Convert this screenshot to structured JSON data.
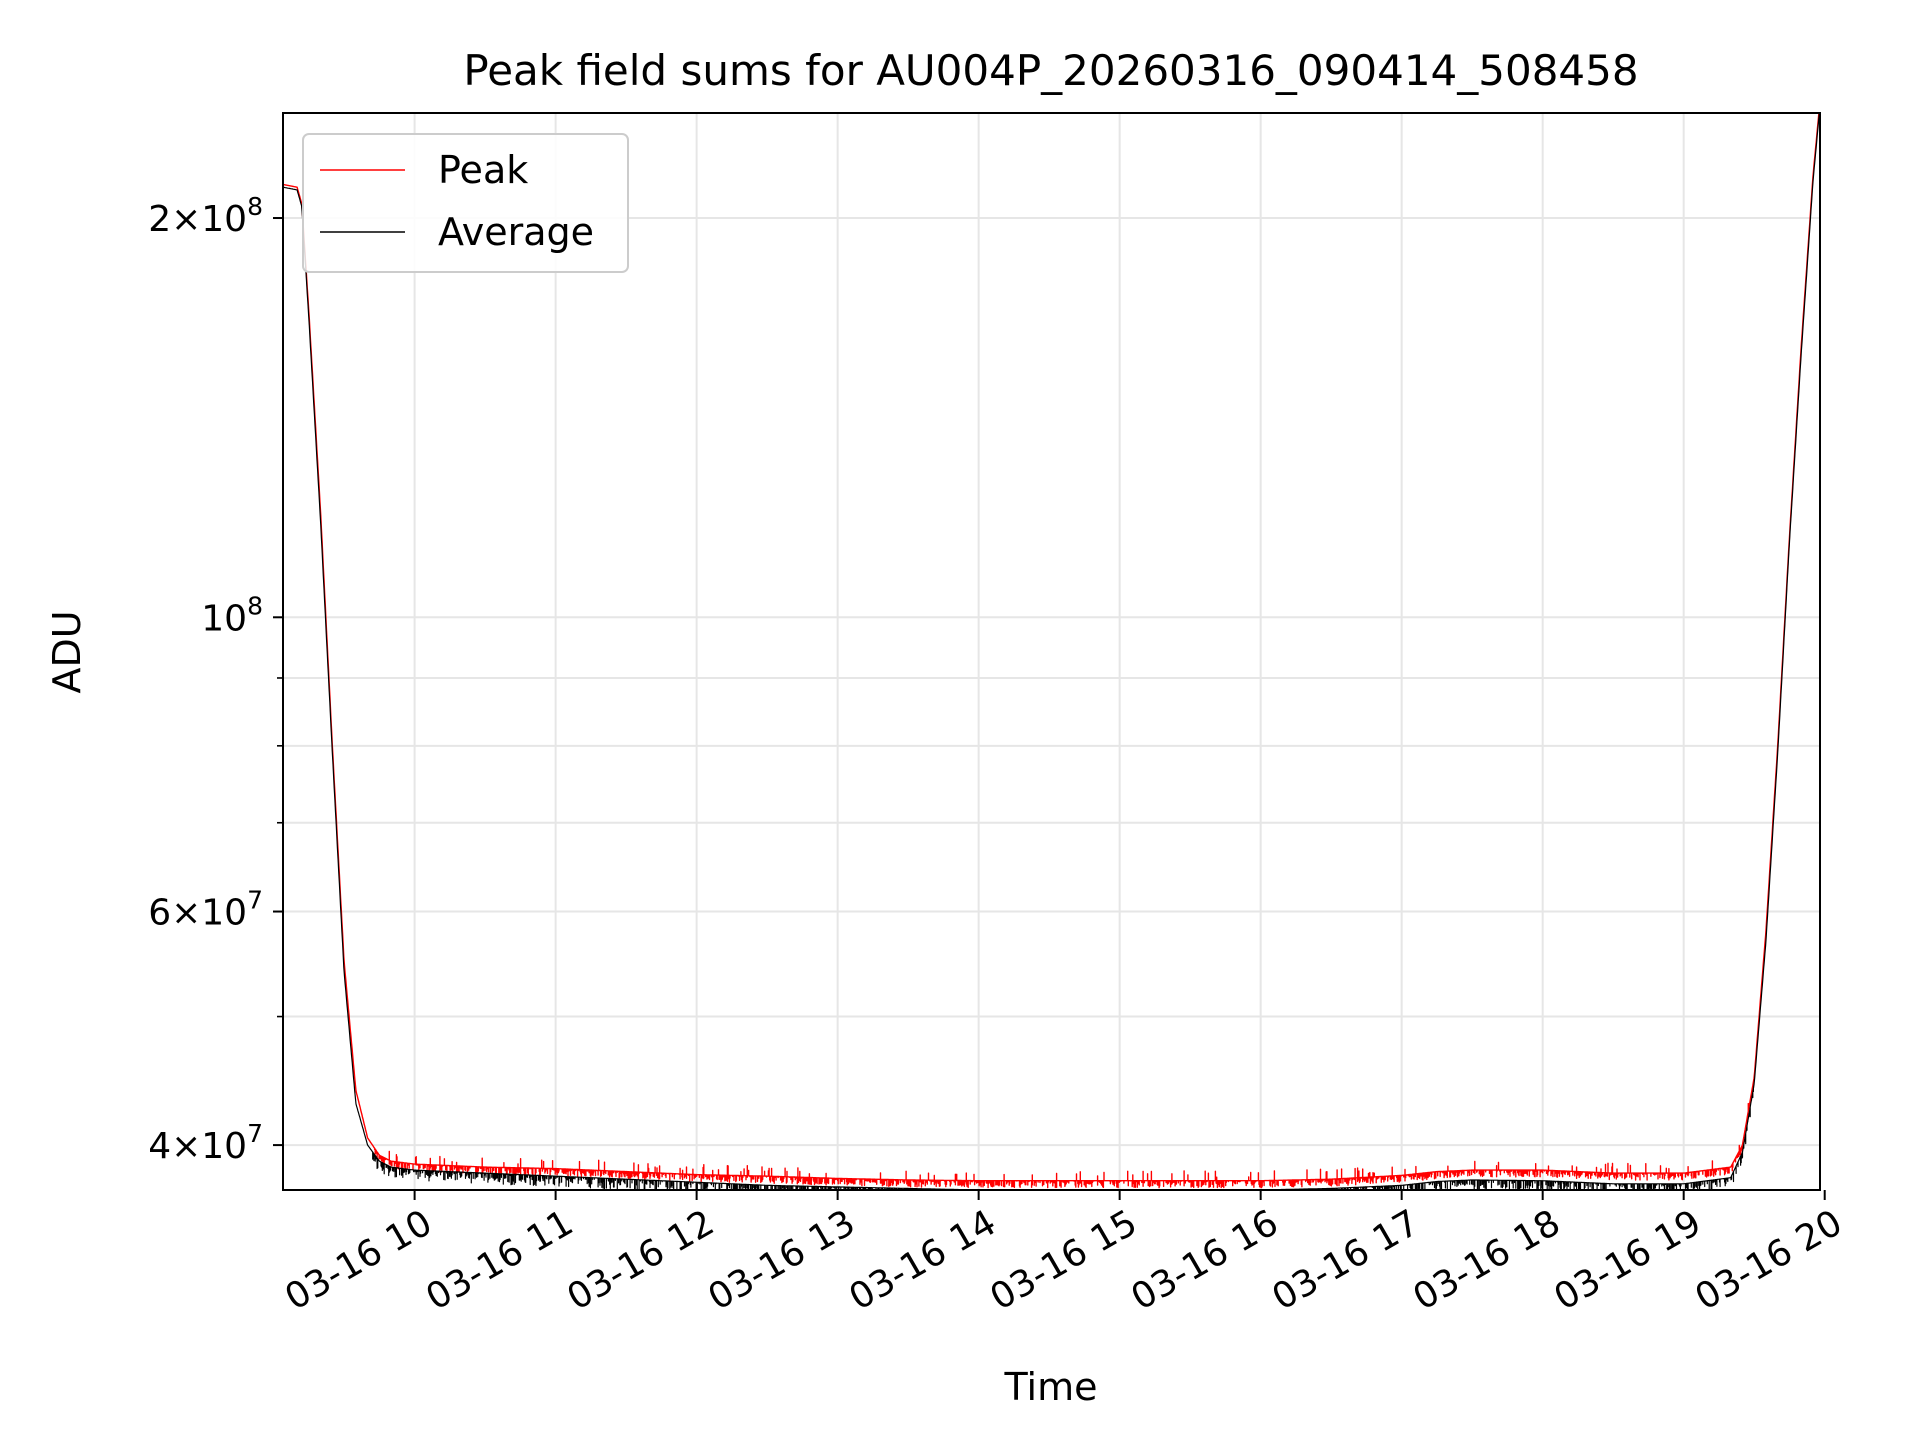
{
  "chart_data": {
    "type": "line",
    "title": "Peak field sums for AU004P_20260316_090414_508458",
    "xlabel": "Time",
    "ylabel": "ADU",
    "yscale": "log",
    "grid": true,
    "legend_position": "top-left",
    "xlim": [
      "03-16 09:04",
      "03-16 19:58"
    ],
    "ylim": [
      37000000,
      240000000
    ],
    "x_ticks": [
      "03-16 10",
      "03-16 11",
      "03-16 12",
      "03-16 13",
      "03-16 14",
      "03-16 15",
      "03-16 16",
      "03-16 17",
      "03-16 18",
      "03-16 19",
      "03-16 20"
    ],
    "y_ticks": [
      {
        "value": 40000000,
        "mantissa": "4",
        "exponent": "7"
      },
      {
        "value": 60000000,
        "mantissa": "6",
        "exponent": "7"
      },
      {
        "value": 100000000,
        "mantissa": "",
        "exponent": "8"
      },
      {
        "value": 200000000,
        "mantissa": "2",
        "exponent": "8"
      }
    ],
    "x": [
      "09:04",
      "09:10",
      "09:12",
      "09:15",
      "09:20",
      "09:25",
      "09:30",
      "09:35",
      "09:40",
      "09:45",
      "09:50",
      "10:00",
      "10:30",
      "11:00",
      "11:30",
      "12:00",
      "12:30",
      "13:00",
      "13:30",
      "14:00",
      "14:30",
      "15:00",
      "15:30",
      "16:00",
      "16:30",
      "17:00",
      "17:15",
      "17:30",
      "18:00",
      "18:30",
      "19:00",
      "19:20",
      "19:25",
      "19:30",
      "19:35",
      "19:40",
      "19:45",
      "19:50",
      "19:55",
      "19:58"
    ],
    "series": [
      {
        "name": "Peak",
        "color": "#ff0000",
        "values": [
          212000000,
          211000000,
          205000000,
          170000000,
          120000000,
          80000000,
          55000000,
          44000000,
          40500000,
          39300000,
          38900000,
          38700000,
          38500000,
          38400000,
          38200000,
          38000000,
          37900000,
          37750000,
          37650000,
          37600000,
          37600000,
          37600000,
          37600000,
          37600000,
          37700000,
          37950000,
          38200000,
          38300000,
          38300000,
          38100000,
          38100000,
          38500000,
          40000000,
          45000000,
          58000000,
          80000000,
          115000000,
          160000000,
          215000000,
          245000000
        ]
      },
      {
        "name": "Average",
        "color": "#000000",
        "values": [
          211000000,
          210000000,
          204000000,
          168000000,
          118000000,
          79000000,
          54000000,
          43000000,
          40000000,
          38900000,
          38500000,
          38300000,
          38100000,
          37900000,
          37700000,
          37500000,
          37300000,
          37200000,
          37100000,
          37000000,
          37000000,
          37000000,
          37000000,
          37000000,
          37100000,
          37300000,
          37550000,
          37650000,
          37600000,
          37400000,
          37400000,
          37800000,
          39500000,
          44500000,
          57000000,
          79000000,
          114000000,
          158000000,
          213000000,
          243000000
        ]
      }
    ]
  }
}
